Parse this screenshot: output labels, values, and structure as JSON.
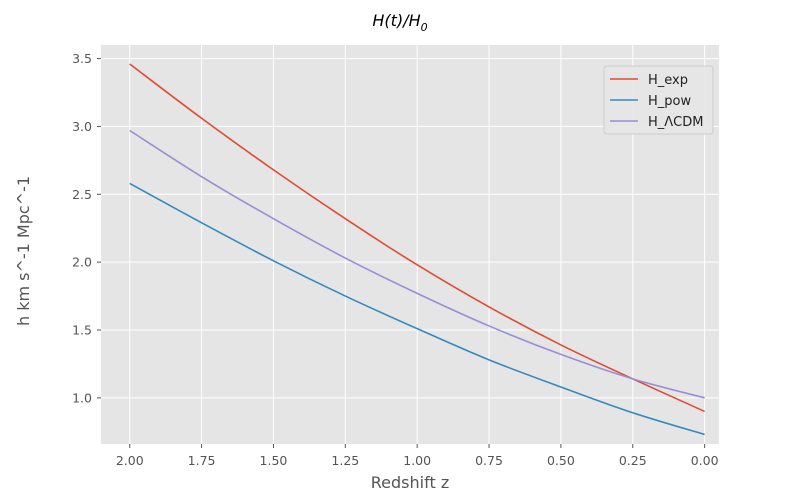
{
  "chart_data": {
    "type": "line",
    "title": "H(t)/H",
    "title_subscript": "0",
    "xlabel": "Redshift z",
    "ylabel": "h km s^-1 Mpc^-1",
    "xlim": [
      2.1,
      -0.05
    ],
    "ylim": [
      0.66,
      3.6
    ],
    "x_inverted": true,
    "grid": true,
    "legend_position": "top-right",
    "xticks": [
      2.0,
      1.75,
      1.5,
      1.25,
      1.0,
      0.75,
      0.5,
      0.25,
      0.0
    ],
    "xtick_labels": [
      "2.00",
      "1.75",
      "1.50",
      "1.25",
      "1.00",
      "0.75",
      "0.50",
      "0.25",
      "0.00"
    ],
    "yticks": [
      1.0,
      1.5,
      2.0,
      2.5,
      3.0,
      3.5
    ],
    "ytick_labels": [
      "1.0",
      "1.5",
      "2.0",
      "2.5",
      "3.0",
      "3.5"
    ],
    "x": [
      2.0,
      1.75,
      1.5,
      1.25,
      1.0,
      0.75,
      0.5,
      0.25,
      0.0
    ],
    "series": [
      {
        "name": "H_exp",
        "color": "#E24A33",
        "values": [
          3.46,
          3.06,
          2.68,
          2.32,
          1.98,
          1.67,
          1.39,
          1.14,
          0.9
        ]
      },
      {
        "name": "H_pow",
        "color": "#348ABD",
        "values": [
          2.58,
          2.29,
          2.01,
          1.75,
          1.51,
          1.28,
          1.08,
          0.89,
          0.73
        ]
      },
      {
        "name": "H_ΛCDM",
        "color": "#988ED5",
        "values": [
          2.97,
          2.63,
          2.32,
          2.03,
          1.77,
          1.53,
          1.32,
          1.14,
          1.0
        ]
      }
    ]
  }
}
